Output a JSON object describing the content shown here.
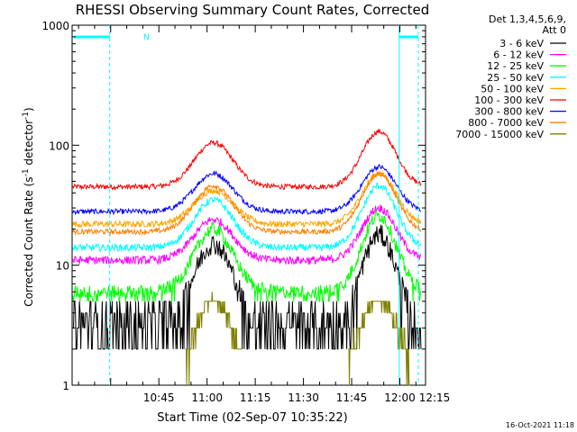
{
  "chart_data": {
    "type": "line",
    "title": "RHESSI Observing Summary Count Rates, Corrected",
    "xlabel": "Start Time (02-Sep-07 10:35:22)",
    "ylabel_main": "Corrected Count Rate (s",
    "ylabel_sup1": "-1",
    "ylabel_mid": " detector",
    "ylabel_sup2": "-1",
    "ylabel_end": ")",
    "yscale": "log",
    "ylim": [
      1,
      1000
    ],
    "xlim_min": [
      -17,
      93
    ],
    "x_ticks": [
      {
        "min": 10,
        "label": "10:45"
      },
      {
        "min": 25,
        "label": "11:00"
      },
      {
        "min": 40,
        "label": "11:15"
      },
      {
        "min": 55,
        "label": "11:30"
      },
      {
        "min": 70,
        "label": "11:45"
      },
      {
        "min": 85,
        "label": "12:00"
      },
      {
        "min": 100,
        "label": "12:15"
      }
    ],
    "y_ticks": [
      {
        "value": 1,
        "label": "1"
      },
      {
        "value": 10,
        "label": "10"
      },
      {
        "value": 100,
        "label": "100"
      },
      {
        "value": 1000,
        "label": "1000"
      }
    ],
    "legend_header": [
      "Det 1,3,4,5,6,9,",
      "Att 0"
    ],
    "legend_placement": "right",
    "night_marker_label": "N",
    "attenuator_markers_min": [
      -5.3,
      84.8,
      101
    ],
    "timestamp": "16-Oct-2021 11:18",
    "series": [
      {
        "name": "3 - 6 keV",
        "color": "#000000"
      },
      {
        "name": "6 - 12 keV",
        "color": "#ff00ff"
      },
      {
        "name": "12 - 25 keV",
        "color": "#00ff00"
      },
      {
        "name": "25 - 50 keV",
        "color": "#00ffff"
      },
      {
        "name": "50 - 100 keV",
        "color": "#ffa500"
      },
      {
        "name": "100 - 300 keV",
        "color": "#ff0000"
      },
      {
        "name": "300 - 800 keV",
        "color": "#0000ff"
      },
      {
        "name": "800 - 7000 keV",
        "color": "#ff7f00"
      },
      {
        "name": "7000 - 15000 keV",
        "color": "#808000"
      }
    ],
    "profiles": {
      "red": {
        "base": 45,
        "p1": 105,
        "p2": 130
      },
      "blue": {
        "base": 28,
        "p1": 58,
        "p2": 66
      },
      "orange": {
        "base": 19,
        "p1": 46,
        "p2": 58
      },
      "gold": {
        "base": 22,
        "p1": 42,
        "p2": 58
      },
      "cyan": {
        "base": 14,
        "p1": 35,
        "p2": 46
      },
      "magenta": {
        "base": 11,
        "p1": 24,
        "p2": 30
      },
      "green": {
        "base": 6,
        "p1": 20,
        "p2": 26
      },
      "black": {
        "base": 3.5,
        "p1": 15,
        "p2": 18
      }
    }
  }
}
